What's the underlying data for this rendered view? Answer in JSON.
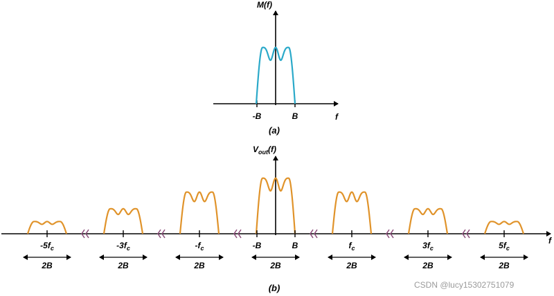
{
  "colors": {
    "baseband": "#2aa9c9",
    "spectrum": "#e0932a",
    "break_mark": "#8a4a78",
    "watermark": "#9a9a9a"
  },
  "panel_a": {
    "y_label": "M(f)",
    "x_label": "f",
    "ticks": [
      "-B",
      "B"
    ],
    "caption": "(a)"
  },
  "panel_b": {
    "y_label_main": "V",
    "y_label_sub": "out",
    "y_label_tail": "(f)",
    "x_label": "f",
    "ticks": [
      {
        "pre": "-5f",
        "sub": "c"
      },
      {
        "pre": "-3f",
        "sub": "c"
      },
      {
        "pre": "-f",
        "sub": "c"
      },
      {
        "pre": "-B",
        "sub": ""
      },
      {
        "pre": "B",
        "sub": ""
      },
      {
        "pre": "f",
        "sub": "c"
      },
      {
        "pre": "3f",
        "sub": "c"
      },
      {
        "pre": "5f",
        "sub": "c"
      }
    ],
    "bandwidth_label": "2B",
    "harmonics": [
      {
        "name": "-5fc",
        "amplitude": 0.22
      },
      {
        "name": "-3fc",
        "amplitude": 0.45
      },
      {
        "name": "-fc",
        "amplitude": 0.75
      },
      {
        "name": "baseband",
        "amplitude": 1.0
      },
      {
        "name": "fc",
        "amplitude": 0.75
      },
      {
        "name": "3fc",
        "amplitude": 0.45
      },
      {
        "name": "5fc",
        "amplitude": 0.22
      }
    ],
    "caption": "(b)"
  },
  "watermark": "CSDN @lucy15302751079"
}
